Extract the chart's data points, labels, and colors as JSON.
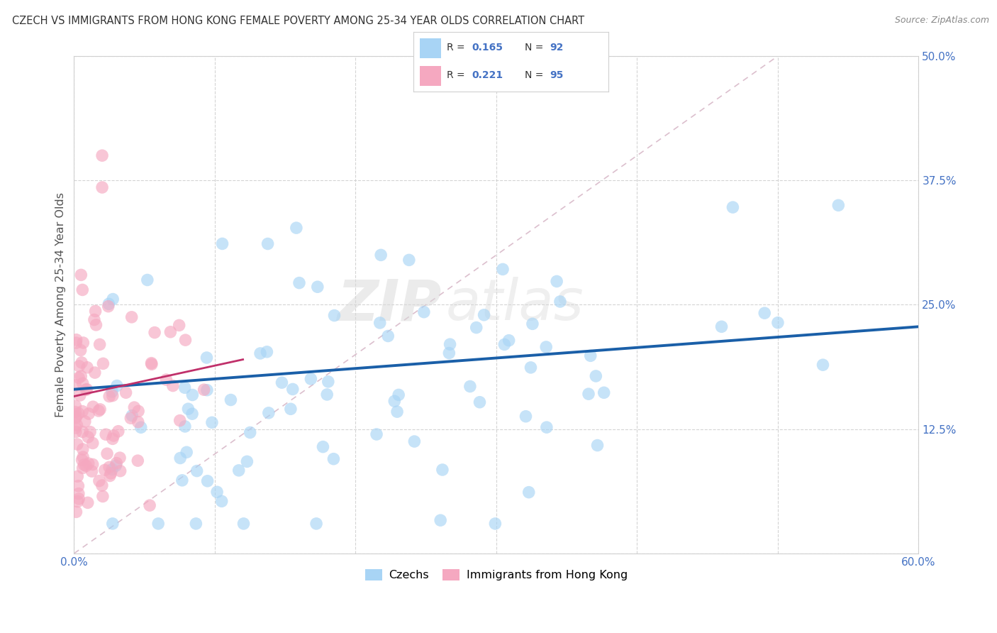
{
  "title": "CZECH VS IMMIGRANTS FROM HONG KONG FEMALE POVERTY AMONG 25-34 YEAR OLDS CORRELATION CHART",
  "source": "Source: ZipAtlas.com",
  "ylabel": "Female Poverty Among 25-34 Year Olds",
  "xlim": [
    0.0,
    0.6
  ],
  "ylim": [
    0.0,
    0.5
  ],
  "czech_color": "#a8d4f5",
  "hk_color": "#f5a8c0",
  "czech_line_color": "#1a5fa8",
  "hk_line_color": "#c0306a",
  "diag_color": "#d8b8c8",
  "czech_R": 0.165,
  "czech_N": 92,
  "hk_R": 0.221,
  "hk_N": 95,
  "legend_label_czech": "Czechs",
  "legend_label_hk": "Immigrants from Hong Kong",
  "watermark_zip": "ZIP",
  "watermark_atlas": "atlas",
  "background_color": "#ffffff",
  "legend_text_color": "#333333",
  "value_color": "#4472c4",
  "tick_color": "#4472c4",
  "title_color": "#333333",
  "source_color": "#888888",
  "ylabel_color": "#555555",
  "grid_color": "#d0d0d0",
  "czech_line_y0": 0.165,
  "czech_line_y1": 0.228,
  "hk_line_x0": 0.0,
  "hk_line_y0": 0.158,
  "hk_line_x1": 0.12,
  "hk_line_y1": 0.195
}
